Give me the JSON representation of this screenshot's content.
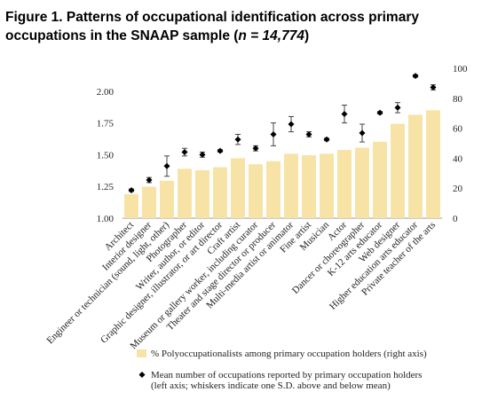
{
  "chart_data": {
    "type": "bar-dot",
    "title_parts": [
      "Figure 1. Patterns of occupational identification across primary",
      "occupations in the SNAAP sample (",
      "n = 14,774",
      ")"
    ],
    "categories": [
      "Architect",
      "Interior designer",
      "Engineer or technician (sound, light, other)",
      "Photographer",
      "Writer, author, or editor",
      "Graphic designer, illustrator, or art director",
      "Craft artist",
      "Museum or gallery worker, including curator",
      "Theater and stage director or producer",
      "Multi-media artist or animator",
      "Fine artist",
      "Musician",
      "Actor",
      "Dancer or choreographer",
      "K-12 arts educator",
      "Web designer",
      "Higher education arts educator",
      "Private teacher of the arts"
    ],
    "series": [
      {
        "name": "% Polyoccupationalists among primary occupation holders (right axis)",
        "color": "#f8e3a6",
        "axis": "y2",
        "values": [
          16,
          21,
          25,
          33,
          32,
          34,
          40,
          36,
          38,
          43,
          42,
          43,
          45.5,
          47,
          51,
          63,
          69,
          72
        ]
      },
      {
        "name": [
          "Mean number of occupations reported by primary occupation holders",
          "(left axis; whiskers indicate one S.D. above and below mean)"
        ],
        "color": "#000000",
        "values": [
          1.22,
          1.3,
          1.41,
          1.52,
          1.5,
          1.53,
          1.62,
          1.55,
          1.66,
          1.74,
          1.66,
          1.62,
          1.82,
          1.67,
          1.83,
          1.87,
          2.12,
          2.03
        ],
        "errors": [
          0.01,
          0.02,
          0.08,
          0.03,
          0.02,
          0.01,
          0.04,
          0.02,
          0.09,
          0.06,
          0.02,
          0.01,
          0.07,
          0.07,
          0.01,
          0.04,
          0.01,
          0.02
        ]
      }
    ],
    "ylim": [
      1,
      2.18
    ],
    "yticks": [
      {
        "value": 1,
        "label": "1.00"
      },
      {
        "value": 1.25,
        "label": "1.25"
      },
      {
        "value": 1.5,
        "label": "1.50"
      },
      {
        "value": 1.75,
        "label": "1.75"
      },
      {
        "value": 2,
        "label": "2.00"
      }
    ],
    "y2lim": [
      0,
      100
    ],
    "y2ticks": [
      0,
      20,
      40,
      60,
      80,
      100
    ]
  }
}
